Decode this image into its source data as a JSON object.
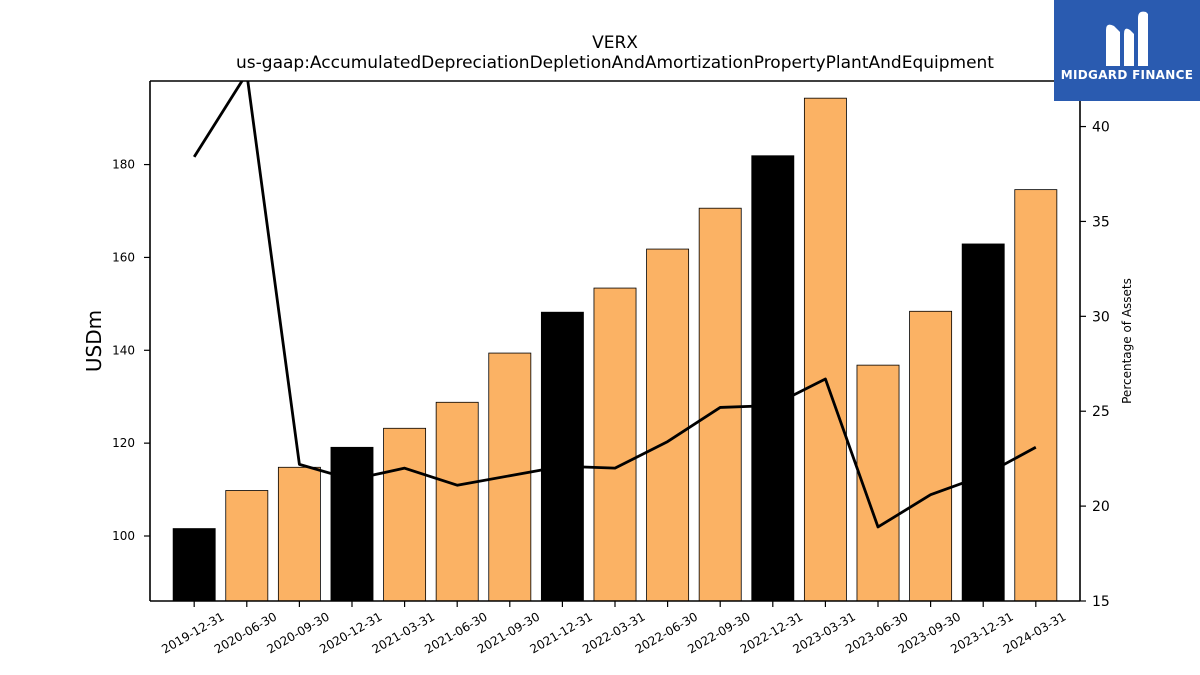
{
  "logo": {
    "text": "MIDGARD FINANCE",
    "bg_color": "#2a5bb0"
  },
  "chart_data": {
    "type": "bar",
    "title": "VERX",
    "subtitle": "us-gaap:AccumulatedDepreciationDepletionAndAmortizationPropertyPlantAndEquipment",
    "ylabel": "USDm",
    "ylabel_right": "Percentage of Assets",
    "ylim": [
      86,
      198
    ],
    "ylim_right": [
      15,
      42.4
    ],
    "yticks": [
      100,
      120,
      140,
      160,
      180
    ],
    "yticks_right": [
      15,
      20,
      25,
      30,
      35,
      40
    ],
    "categories": [
      "2019-12-31",
      "2020-06-30",
      "2020-09-30",
      "2020-12-31",
      "2021-03-31",
      "2021-06-30",
      "2021-09-30",
      "2021-12-31",
      "2022-03-31",
      "2022-06-30",
      "2022-09-30",
      "2022-12-31",
      "2023-03-31",
      "2023-06-30",
      "2023-09-30",
      "2023-12-31",
      "2024-03-31"
    ],
    "series": [
      {
        "type": "bar",
        "values": [
          101.6,
          109.8,
          114.8,
          119.1,
          123.2,
          128.8,
          139.4,
          148.2,
          153.4,
          161.8,
          170.6,
          181.9,
          194.3,
          136.8,
          148.4,
          162.9,
          174.6
        ],
        "colors": [
          "#000000",
          "#fbb264",
          "#fbb264",
          "#000000",
          "#fbb264",
          "#fbb264",
          "#fbb264",
          "#000000",
          "#fbb264",
          "#fbb264",
          "#fbb264",
          "#000000",
          "#fbb264",
          "#fbb264",
          "#fbb264",
          "#000000",
          "#fbb264"
        ]
      },
      {
        "type": "line",
        "axis": "right",
        "color": "#000000",
        "values": [
          38.4,
          42.8,
          22.2,
          21.4,
          22.0,
          21.1,
          21.6,
          22.1,
          22.0,
          23.4,
          25.2,
          25.3,
          26.7,
          18.9,
          20.6,
          21.6,
          23.1
        ]
      }
    ],
    "grid": false
  }
}
